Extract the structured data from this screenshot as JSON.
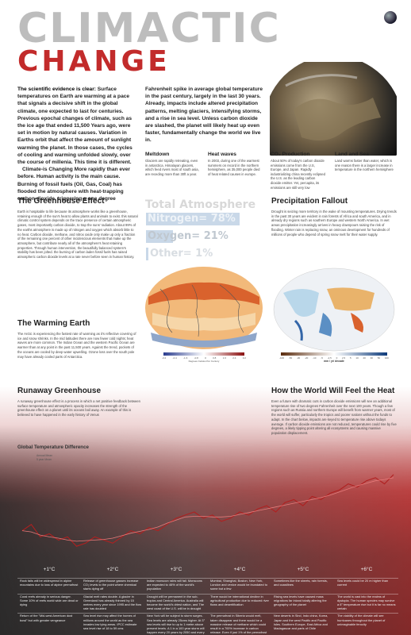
{
  "title": {
    "line1": "CLIMACTIC",
    "line2": "CHANGE"
  },
  "intro": {
    "lead": "The scientific evidence is clear:",
    "col1": " Surface temperatures on Earth are warming at a pace that signals a decisive shift in the global climate, one expected to last for centuries. Previous epochal changes of climate, such as the ice age that ended 11,500 Years ago, were set in motion by natural causes. Variation in Earths orbit that affect the amount of sunlight warming the planet. In those cases, the cycles of cooling and warming unfolded slowly, over the course of millenia. This time it is different.",
    "col1b": "Climate-is Changing More rapidly than ever before. Human activity is the main cause. Burning of fossil fuels (Oil, Gas, Coal) has flooded the atmosphere with heat-trapping carbon dioxide, triggering a one degree",
    "col2": "Fahrenheit spike in average global temperature in the past century, largely in the last 30 years. Already, impacts include altered precipitation patterns, melting glaciers, intensifying storms, and a rise in sea level. Unless carbon dioxide are slashed, the planet will likely heat up even faster, fundamentally change the world we live in."
  },
  "subsections": [
    {
      "title": "Meltdown",
      "text": "Glaciers are rapidly retreating, even in antarctica. Himalayan glaciers, which feed rivers most of south asia, are receding more than 30ft a year."
    },
    {
      "title": "Heat waves",
      "text": "In 2003, during one of the warmest summers on record in the northern hemisphere, as 35,000 people died of heat related causes in europe."
    },
    {
      "title": "CO₂ Production",
      "text": "About 50% of today's carbon dioxide emissions come from the U.S, Europe, and Japan. Rapidly industrializing china recently eclipsed the U.S. as the leading carbon dioxide emitter. Yet, percapita, its emissions are still very low"
    },
    {
      "title": "Land and Sea",
      "text": "Land warms faster than water, which is one reason there is a larger increase in temperature in the northern hemisphere"
    }
  ],
  "greenhouse": {
    "title": "The Greenhouse Effect",
    "text": "Earth is hospitable to life because its atmosphere works like a greenhouse, retaining enough of the sun's heat to allow plants and animals to exist. this natural climatic control system depends on the trace presence of certain atmospheric gases, most importantly carbon dioxide, to trap the suns' radiation. About 99% of the earths atmosphere is made up of nitrogen and oxygen which absorb little to no heat. Carbon dioxide, methane, and nitrox oxide only make up only a fraction of the remaining one percent of other incidencious elements that make up the atmosphere, but contribute nearly all of the atmosphere's heat retaining properties. Through human intervention, the beautifully balanced system's stability has been jolted. the burning of carbon laden fossil fuels has raised atmospheric carbon dioxide levels at a rate never before seen in human history."
  },
  "atmosphere": {
    "total": "Total Atmosphere",
    "nitrogen": "Nitrogen= 78%",
    "oxygen": "Oxygen= 21%",
    "other": "Other= 1%"
  },
  "precip": {
    "title": "Precipitation Fallout",
    "text": "Drought is seizing more territory in the wake of mounting temperatures. Drying trends in the past 30 years are evident in rain forests of Africa and south America, and in already dry regions such as southern Europe and western North America. In wet areas precipitation increasingly arrives in heavy downpours raising the risk of flooding. Winter rain is replacing snow, an ominous development for hundreds of millions of people who depend of spring snow melt for their water supply."
  },
  "warming": {
    "title": "The Warming Earth",
    "text": "The Arctic is experiencing the fastest rate of warming as it's reflective covering of ice and snow shrinks. In the mid latitudes there are now fewer cold nights; heat waves are more common. The Indian Ocean and the western Pacific Ocean are warmer than at any point in the past 11,500 years. Against the trend, pockets of the oceans are cooled by deep water upwelling. Ozone loss over the south pole may have already cooled parts of Antarctica."
  },
  "map_left": {
    "ticks": [
      "-3.2",
      "-2.4",
      "-1.6",
      "-0.8",
      "0",
      "0.8",
      "1.6",
      "2.4",
      "3.2"
    ],
    "caption": "Degrees Celsius Per Century"
  },
  "map_right": {
    "ticks": [
      "-100",
      "-50",
      "-30",
      "-20",
      "-10",
      "-5",
      "-2.5",
      "0",
      "2.5",
      "5",
      "10",
      "20",
      "30",
      "50",
      "100"
    ],
    "caption": "mm / yr/ decade"
  },
  "runaway": {
    "title": "Runaway Greenhouse",
    "text": "A runaway greenhouse effect is a process in which a net positive feedback between surface temperature and atmospheric opacity increases the strength of the greenhouse effect on a planet until its oceans boil away. An example of this is believed to have happened in the early history of Venus"
  },
  "world": {
    "title": "How the World Will Feel the Heat",
    "text": "Even a future with dramatic cuts in carbon dioxide emissions will see an additional temperature rise of two degrees Fahrenheit over the next 100 years. Though a few regions such as Russia and northern Europe will benefit from warmer years, most of the world will suffer, particularly the tropics and poorer nations without the funds to adapt. In the chart below, impacts are keyed to temperature rise above todays average. If carbon dioxide emissions are not reduced, temperatures could rise by five degrees, a likely tipping point altering all ecosystems and causing massive population displacement."
  },
  "chart_data": {
    "type": "line",
    "title": "Global Temperature Difference",
    "series": [
      {
        "name": "Annual Mean",
        "values": [
          -0.2,
          -0.1,
          -0.3,
          -0.25,
          -0.35,
          -0.3,
          -0.45,
          -0.4,
          -0.3,
          -0.35,
          -0.4,
          -0.3,
          -0.2,
          -0.25,
          -0.15,
          -0.2,
          -0.1,
          0.0,
          0.05,
          0.1,
          0.0,
          0.05,
          -0.05,
          0.0,
          0.1,
          0.05,
          0.15,
          0.2,
          0.1,
          0.25,
          0.3,
          0.2,
          0.35,
          0.3,
          0.4,
          0.45,
          0.55,
          0.5,
          0.6,
          0.65,
          0.55,
          0.7
        ]
      },
      {
        "name": "5 year Mean",
        "values": [
          -0.2,
          -0.22,
          -0.27,
          -0.3,
          -0.32,
          -0.35,
          -0.37,
          -0.36,
          -0.35,
          -0.34,
          -0.32,
          -0.28,
          -0.24,
          -0.21,
          -0.18,
          -0.14,
          -0.08,
          -0.03,
          0.02,
          0.03,
          0.03,
          0.02,
          0.02,
          0.03,
          0.06,
          0.09,
          0.12,
          0.15,
          0.18,
          0.21,
          0.24,
          0.27,
          0.3,
          0.33,
          0.37,
          0.42,
          0.47,
          0.52,
          0.56,
          0.6,
          0.62,
          0.65
        ]
      }
    ]
  },
  "impacts": {
    "degrees": [
      "+1°C",
      "+2°C",
      "+3°C",
      "+4°C",
      "+5°C",
      "+6°C"
    ],
    "rows": [
      [
        "Rock falls will be widespread in alpine mountains due to loss of alpine permafrost",
        "Release of greenhouse gasses increase CO₂ levels to the point where chemical starts dying off",
        "Indian monsoon rains will fail. Monsoons are expected to 46% of the world's population",
        "Mumbai, Shanghai, Boston, New York, London and venice would be inundated to some but a few",
        "Sometimes like the sheets, rain forests, and coastlines",
        "Sea levels could be 20 m higher than current"
      ],
      [
        "Coral reefs already in serious danger. Some 10% of reefs world wide are dead or dying",
        "Glacial melt rates double. A glacier in Greenland has already thinned by 15 metres every year since 1995 and the flow rate has doubled",
        "Drought will be permanent in the sub-tropics and Central America. Australia will become the world's driest nation, and The west coast of the U.S. will be in drought",
        "There would be international decline in agricultural production due to reduced river flows and desertification",
        "Rising sea levels have caused mass migrations far inland totally altering the geography of the planet",
        "The world is cast into the realms of dystopia. The human species may survive a 6° temperature rise but it is far no means certain"
      ],
      [
        "Return of the \"Mid-west American dust bowl\" but with greater vengeance",
        "Sea level rise may affect the homes of millions around the world as the sea invades low lying areas. IPCC estimate sea level rise of 18 to 59 cms",
        "New York will be subject to storm surges. Sea levels are already 25cms higher. At 3° sea levels will rise to up to 1 metre above present levels. A 1 in a 100 year storm will happen every 20 years by 2050 and every forth year by 2080",
        "The permafrost in Siberia would melt, taken disappear and there would be a massive release of methane which could result in a 700% increase in carbon release. Even if just 1% of the permafrost disappears in it will be equivalent to doubling our global emissions",
        "New deserts in Sind, Indo china, Korea, Japan and the west Pacific and Pacific Isles. Southern Europe, East Africa and Madagascar and parts of Chile",
        "The viability of the climate will see hurricanes throughout the planet of unimaginable ferocity"
      ],
      [
        "Africa's three highest peaks will have lost half their glacial area compared to 1987",
        "",
        "",
        "",
        "There would inevitably be a massive reduction in the supportable population. Quite possibly billions will die",
        ""
      ]
    ]
  }
}
